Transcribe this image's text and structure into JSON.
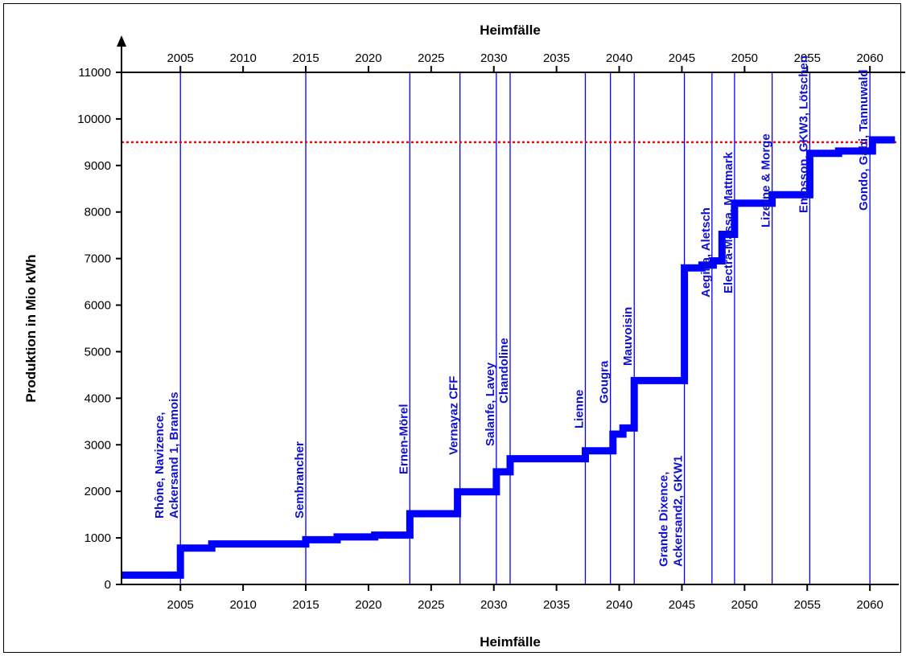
{
  "chart_data": {
    "type": "line",
    "title": "Heimfälle",
    "xlabel": "Heimfälle",
    "ylabel": "Produktion in Mio kWh",
    "xlim": [
      2000.3,
      2062.3
    ],
    "ylim": [
      0,
      11000
    ],
    "x_ticks": [
      2005,
      2010,
      2015,
      2020,
      2025,
      2030,
      2035,
      2040,
      2045,
      2050,
      2055,
      2060
    ],
    "y_ticks": [
      0,
      1000,
      2000,
      3000,
      4000,
      5000,
      6000,
      7000,
      8000,
      9000,
      10000,
      11000
    ],
    "grid": false,
    "colors": {
      "series": "#0000ff",
      "reference": "#ff0000",
      "labels": "#1010d0"
    },
    "reference_line": {
      "y": 9500,
      "style": "dotted"
    },
    "series": [
      {
        "values": [
          [
            2000.3,
            200
          ],
          [
            2005.0,
            200
          ],
          [
            2005.0,
            780
          ],
          [
            2007.5,
            780
          ],
          [
            2007.5,
            870
          ],
          [
            2015.0,
            870
          ],
          [
            2015.0,
            960
          ],
          [
            2017.5,
            960
          ],
          [
            2017.5,
            1020
          ],
          [
            2020.5,
            1020
          ],
          [
            2020.5,
            1060
          ],
          [
            2023.3,
            1060
          ],
          [
            2023.3,
            1520
          ],
          [
            2027.1,
            1520
          ],
          [
            2027.1,
            1990
          ],
          [
            2030.2,
            1990
          ],
          [
            2030.2,
            2420
          ],
          [
            2031.3,
            2420
          ],
          [
            2031.3,
            2700
          ],
          [
            2037.3,
            2700
          ],
          [
            2037.3,
            2870
          ],
          [
            2039.5,
            2870
          ],
          [
            2039.5,
            3230
          ],
          [
            2040.3,
            3230
          ],
          [
            2040.3,
            3360
          ],
          [
            2041.2,
            3360
          ],
          [
            2041.2,
            4380
          ],
          [
            2045.2,
            4380
          ],
          [
            2045.2,
            6800
          ],
          [
            2046.6,
            6800
          ],
          [
            2046.6,
            6860
          ],
          [
            2047.5,
            6860
          ],
          [
            2047.5,
            6950
          ],
          [
            2048.2,
            6950
          ],
          [
            2048.2,
            7520
          ],
          [
            2049.2,
            7520
          ],
          [
            2049.2,
            8190
          ],
          [
            2052.2,
            8190
          ],
          [
            2052.2,
            8370
          ],
          [
            2055.2,
            8370
          ],
          [
            2055.2,
            9260
          ],
          [
            2057.5,
            9260
          ],
          [
            2057.5,
            9310
          ],
          [
            2060.2,
            9310
          ],
          [
            2060.2,
            9550
          ],
          [
            2062.0,
            9550
          ]
        ]
      }
    ],
    "events": [
      {
        "x": 2005.0,
        "lines": [
          "Rhône, Navizence,",
          "Ackersand 1, Bramois"
        ]
      },
      {
        "x": 2015.0,
        "lines": [
          "Sembrancher"
        ]
      },
      {
        "x": 2023.3,
        "lines": [
          "Ernen-Mörel"
        ]
      },
      {
        "x": 2027.3,
        "lines": [
          "Vernayaz CFF"
        ]
      },
      {
        "x": 2030.2,
        "lines": [
          "Salanfe, Lavey"
        ]
      },
      {
        "x": 2031.3,
        "lines": [
          "Chandoline"
        ]
      },
      {
        "x": 2037.3,
        "lines": [
          "Lienne"
        ]
      },
      {
        "x": 2039.3,
        "lines": [
          "Gougra"
        ]
      },
      {
        "x": 2041.2,
        "lines": [
          "Mauvoisin"
        ]
      },
      {
        "x": 2045.2,
        "lines": [
          "Grande Dixence,",
          "Ackersand2, GKW1"
        ]
      },
      {
        "x": 2047.4,
        "lines": [
          "Aegina, Aletsch"
        ]
      },
      {
        "x": 2049.2,
        "lines": [
          "Electra-Massa, Mattmark"
        ]
      },
      {
        "x": 2052.2,
        "lines": [
          "Lizerne & Morge"
        ]
      },
      {
        "x": 2055.2,
        "lines": [
          "Emosson, GKW3, Lötschen"
        ]
      },
      {
        "x": 2060.0,
        "lines": [
          "Gondo, Gabi, Tannuwald"
        ]
      }
    ]
  }
}
